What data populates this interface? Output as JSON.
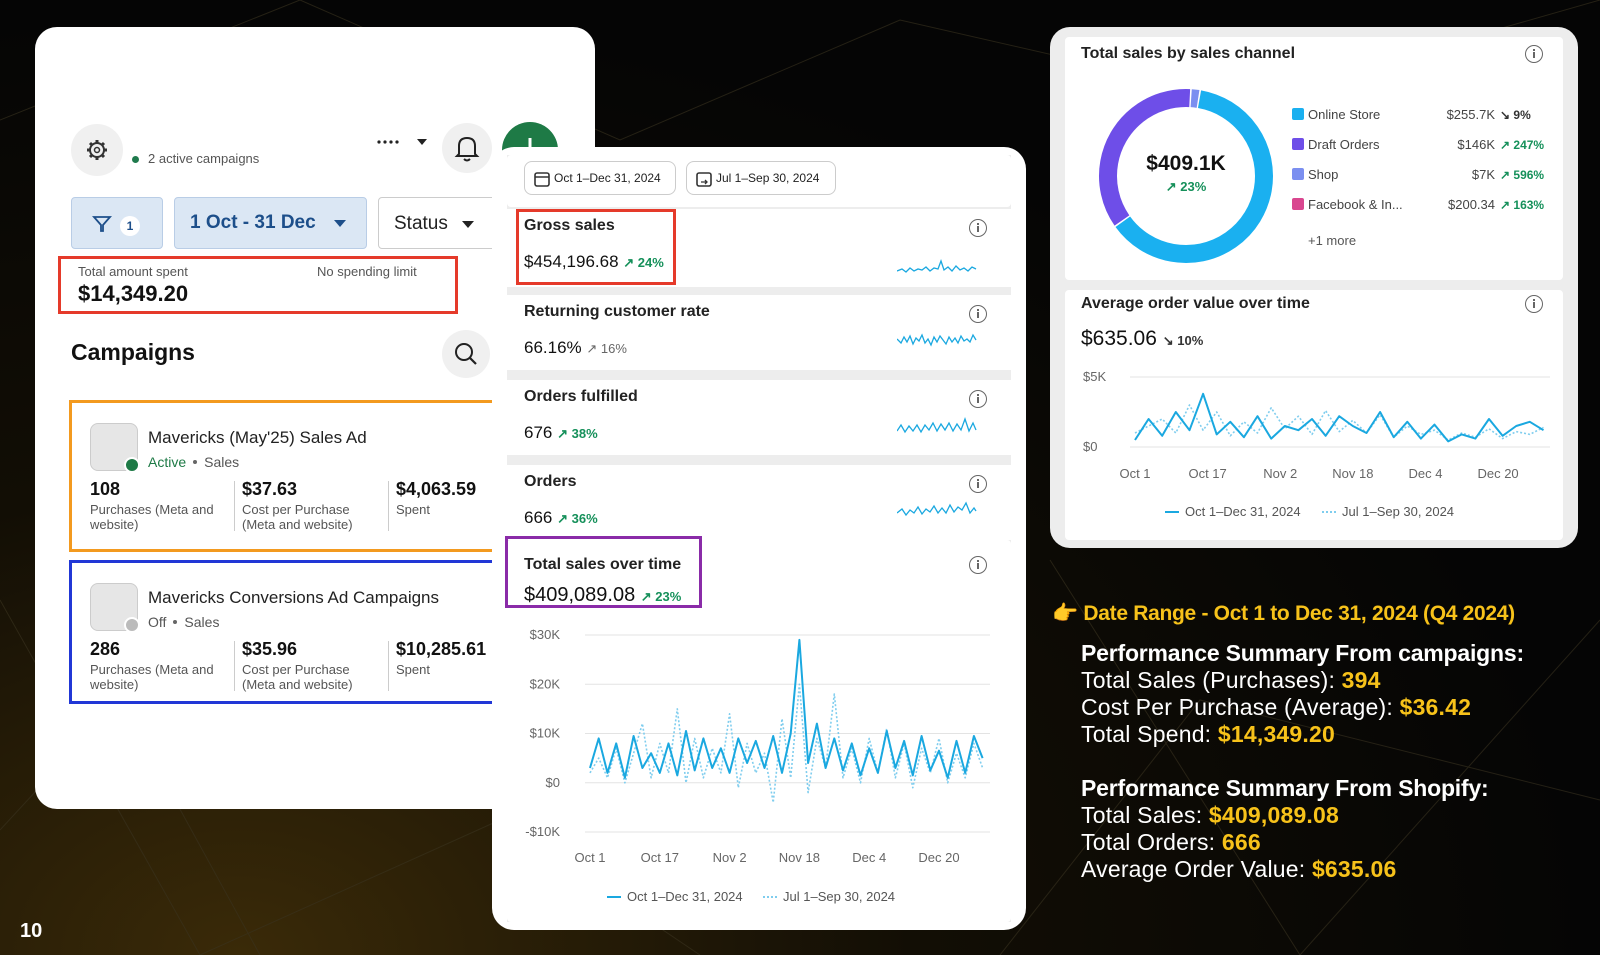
{
  "page_number": "10",
  "ads_manager": {
    "active_campaigns": "2 active campaigns",
    "filter_count": "1",
    "date_range": "1 Oct - 31 Dec",
    "status_filter": "Status",
    "total_spent": {
      "label": "Total amount spent",
      "value": "$14,349.20",
      "limit": "No spending limit"
    },
    "campaigns_title": "Campaigns",
    "campaigns": [
      {
        "name": "Mavericks (May'25) Sales Ad",
        "status": "Active",
        "objective": "Sales",
        "metrics": [
          {
            "value": "108",
            "label": "Purchases (Meta and website)"
          },
          {
            "value": "$37.63",
            "label": "Cost per Purchase (Meta and website)"
          },
          {
            "value": "$4,063.59",
            "label": "Spent"
          }
        ]
      },
      {
        "name": "Mavericks Conversions Ad Campaigns",
        "status": "Off",
        "objective": "Sales",
        "metrics": [
          {
            "value": "286",
            "label": "Purchases (Meta and website)"
          },
          {
            "value": "$35.96",
            "label": "Cost per Purchase (Meta and website)"
          },
          {
            "value": "$10,285.61",
            "label": "Spent"
          }
        ]
      }
    ]
  },
  "shopify_analytics": {
    "date_current": "Oct 1–Dec 31, 2024",
    "date_previous": "Jul 1–Sep 30, 2024",
    "metrics": [
      {
        "title": "Gross sales",
        "value": "$454,196.68",
        "change": "↗ 24%"
      },
      {
        "title": "Returning customer rate",
        "value": "66.16%",
        "change": "↗ 16%"
      },
      {
        "title": "Orders fulfilled",
        "value": "676",
        "change": "↗ 38%"
      },
      {
        "title": "Orders",
        "value": "666",
        "change": "↗ 36%"
      }
    ]
  },
  "chart_data": [
    {
      "type": "line",
      "title": "Total sales over time",
      "headline": "$409,089.08",
      "change": "↗ 23%",
      "grid": true,
      "x": [
        0,
        2,
        4,
        6,
        8,
        10,
        12,
        14,
        16,
        18,
        20,
        22,
        24,
        26,
        28,
        30,
        32,
        34,
        36,
        38,
        40,
        42,
        44,
        46,
        48,
        50,
        52,
        54,
        56,
        58,
        60,
        62,
        64,
        66,
        68,
        70,
        72,
        74,
        76,
        78,
        80,
        82,
        84,
        86,
        88,
        90
      ],
      "xlim": [
        0,
        91
      ],
      "xticks": [
        {
          "value": 0,
          "label": "Oct 1"
        },
        {
          "value": 16,
          "label": "Oct 17"
        },
        {
          "value": 32,
          "label": "Nov 2"
        },
        {
          "value": 48,
          "label": "Nov 18"
        },
        {
          "value": 64,
          "label": "Dec 4"
        },
        {
          "value": 80,
          "label": "Dec 20"
        }
      ],
      "ylim": [
        -10000,
        30000
      ],
      "yticks": [
        {
          "value": 30000,
          "label": "$30K"
        },
        {
          "value": 20000,
          "label": "$20K"
        },
        {
          "value": 10000,
          "label": "$10K"
        },
        {
          "value": 0,
          "label": "$0"
        },
        {
          "value": -10000,
          "label": "-$10K"
        }
      ],
      "series": [
        {
          "name": "Oct 1–Dec 31, 2024",
          "color": "#1aa8e0",
          "style": "solid",
          "values": [
            3000,
            9000,
            2000,
            8000,
            1000,
            9500,
            3000,
            6000,
            2000,
            8000,
            1500,
            10500,
            2500,
            9000,
            3000,
            7000,
            2000,
            9000,
            4000,
            8500,
            3000,
            9500,
            2000,
            10000,
            29000,
            4000,
            12000,
            3000,
            9000,
            2500,
            8000,
            1500,
            7000,
            2000,
            10500,
            3000,
            8500,
            1500,
            9500,
            2500,
            6500,
            1000,
            8500,
            2000,
            9500,
            5000
          ]
        },
        {
          "name": "Jul 1–Sep 30, 2024",
          "color": "#7fcdee",
          "style": "dotted",
          "values": [
            2000,
            5000,
            1000,
            7000,
            0,
            6000,
            12000,
            1000,
            8000,
            2000,
            15000,
            0,
            9000,
            1000,
            7000,
            2000,
            14000,
            -1000,
            8000,
            2000,
            6000,
            -4000,
            13000,
            1000,
            20000,
            -2000,
            9000,
            3000,
            18000,
            1000,
            7000,
            0,
            9000,
            2000,
            11000,
            1000,
            8000,
            -1000,
            7000,
            2000,
            9000,
            0,
            6000,
            1000,
            8000,
            3000
          ]
        }
      ]
    },
    {
      "type": "donut",
      "title": "Total sales by sales channel",
      "center_value": "$409.1K",
      "center_change": "↗ 23%",
      "categories": [
        "Online Store",
        "Draft Orders",
        "Shop",
        "Facebook & In..."
      ],
      "values": [
        255700,
        146000,
        7000,
        200.34
      ],
      "value_labels": [
        "$255.7K",
        "$146K",
        "$7K",
        "$200.34"
      ],
      "changes": [
        "↘ 9%",
        "↗ 247%",
        "↗ 596%",
        "↗ 163%"
      ],
      "colors": [
        "#1ab0f0",
        "#6e4ee8",
        "#7b8ff0",
        "#d9468f"
      ],
      "more": "+1 more"
    },
    {
      "type": "line",
      "title": "Average order value over time",
      "headline": "$635.06",
      "change": "↘ 10%",
      "grid": true,
      "x": [
        0,
        3,
        6,
        9,
        12,
        15,
        18,
        21,
        24,
        27,
        30,
        33,
        36,
        39,
        42,
        45,
        48,
        51,
        54,
        57,
        60,
        63,
        66,
        69,
        72,
        75,
        78,
        81,
        84,
        87,
        90
      ],
      "xlim": [
        0,
        91
      ],
      "xticks": [
        {
          "value": 0,
          "label": "Oct 1"
        },
        {
          "value": 16,
          "label": "Oct 17"
        },
        {
          "value": 32,
          "label": "Nov 2"
        },
        {
          "value": 48,
          "label": "Nov 18"
        },
        {
          "value": 64,
          "label": "Dec 4"
        },
        {
          "value": 80,
          "label": "Dec 20"
        }
      ],
      "ylim": [
        0,
        5000
      ],
      "yticks": [
        {
          "value": 5000,
          "label": "$5K"
        },
        {
          "value": 0,
          "label": "$0"
        }
      ],
      "series": [
        {
          "name": "Oct 1–Dec 31, 2024",
          "color": "#1aa8e0",
          "style": "solid",
          "values": [
            500,
            2000,
            800,
            2500,
            1200,
            3800,
            900,
            1800,
            700,
            2200,
            600,
            1500,
            1200,
            2000,
            800,
            2200,
            1500,
            1000,
            2500,
            700,
            1800,
            600,
            1600,
            400,
            900,
            600,
            2000,
            800,
            1500,
            1800,
            1200
          ]
        },
        {
          "name": "Jul 1–Sep 30, 2024",
          "color": "#7fcdee",
          "style": "dotted",
          "values": [
            1000,
            1500,
            2000,
            1000,
            3000,
            1200,
            2500,
            800,
            1800,
            1000,
            2800,
            1300,
            2200,
            900,
            2600,
            1100,
            1900,
            1000,
            2300,
            700,
            1500,
            900,
            1200,
            500,
            1000,
            700,
            1300,
            600,
            1100,
            900,
            1400
          ]
        }
      ]
    }
  ],
  "summary": {
    "heading": "👉 Date Range - Oct 1 to Dec 31, 2024 (Q4 2024)",
    "sections": [
      {
        "title": "Performance Summary From campaigns:",
        "items": [
          {
            "label": "Total Sales (Purchases):",
            "value": "394"
          },
          {
            "label": "Cost Per Purchase (Average):",
            "value": "$36.42"
          },
          {
            "label": "Total Spend:",
            "value": "$14,349.20"
          }
        ]
      },
      {
        "title": "Performance Summary From Shopify:",
        "items": [
          {
            "label": "Total Sales:",
            "value": "$409,089.08"
          },
          {
            "label": "Total Orders:",
            "value": "666"
          },
          {
            "label": "Average Order Value:",
            "value": "$635.06"
          }
        ]
      }
    ]
  }
}
